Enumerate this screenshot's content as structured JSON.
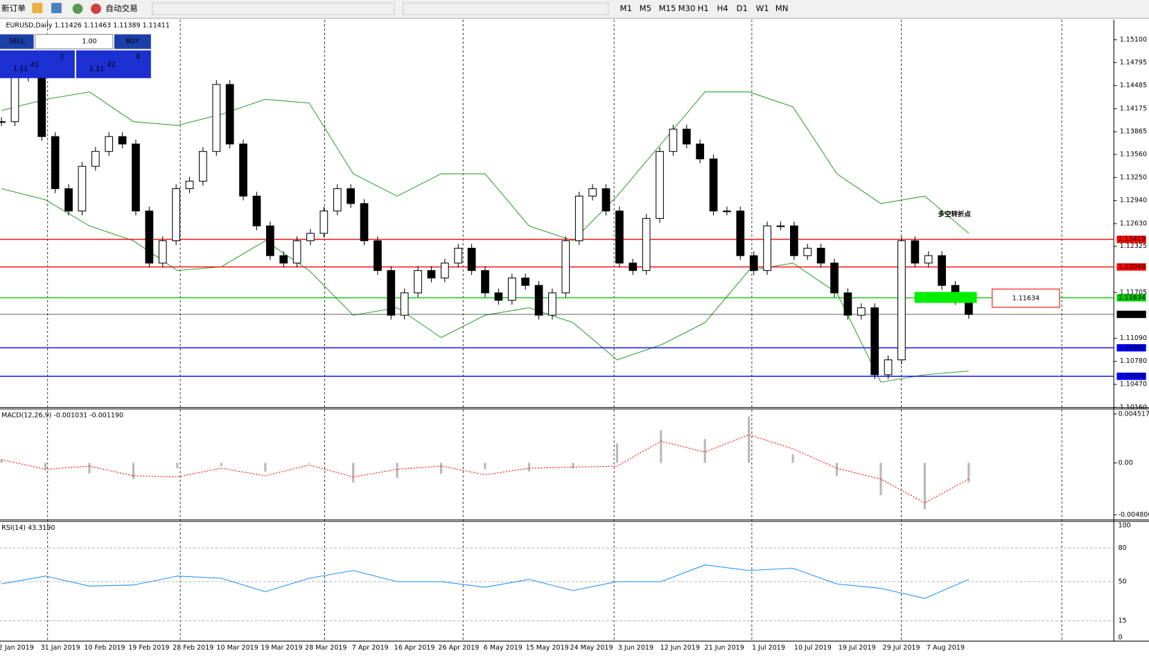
{
  "toolbar": {
    "new_order": "新订单",
    "auto_trade": "自动交易",
    "timeframes": [
      "M1",
      "M5",
      "M15",
      "M30",
      "H1",
      "H4",
      "D1",
      "W1",
      "MN"
    ]
  },
  "trade_panel": {
    "sell": "SELL",
    "buy": "BUY",
    "lots": "1.00",
    "bid_prefix": "1.11",
    "bid_big": "41",
    "bid_sup": "1",
    "ask_prefix": "1.11",
    "ask_big": "42",
    "ask_sup": "8"
  },
  "chart_data": {
    "type": "candlestick",
    "title": "EURUSD,Daily  1.11426 1.11463 1.11389 1.11411",
    "categories": [
      "2 Jan 2019",
      "31 Jan 2019",
      "10 Feb 2019",
      "19 Feb 2019",
      "28 Feb 2019",
      "10 Mar 2019",
      "19 Mar 2019",
      "28 Mar 2019",
      "7 Apr 2019",
      "16 Apr 2019",
      "26 Apr 2019",
      "6 May 2019",
      "15 May 2019",
      "24 May 2019",
      "3 Jun 2019",
      "12 Jun 2019",
      "21 Jun 2019",
      "1 Jul 2019",
      "10 Jul 2019",
      "19 Jul 2019",
      "29 Jul 2019",
      "7 Aug 2019"
    ],
    "closes": [
      1.14,
      1.148,
      1.146,
      1.138,
      1.131,
      1.128,
      1.134,
      1.136,
      1.138,
      1.137,
      1.128,
      1.121,
      1.124,
      1.131,
      1.132,
      1.136,
      1.145,
      1.137,
      1.13,
      1.126,
      1.122,
      1.121,
      1.124,
      1.125,
      1.128,
      1.131,
      1.129,
      1.124,
      1.12,
      1.114,
      1.117,
      1.12,
      1.119,
      1.121,
      1.123,
      1.12,
      1.117,
      1.116,
      1.119,
      1.118,
      1.114,
      1.117,
      1.124,
      1.13,
      1.131,
      1.128,
      1.121,
      1.12,
      1.127,
      1.136,
      1.139,
      1.137,
      1.135,
      1.128,
      1.128,
      1.122,
      1.12,
      1.126,
      1.126,
      1.122,
      1.123,
      1.121,
      1.117,
      1.114,
      1.115,
      1.106,
      1.108,
      1.124,
      1.121,
      1.122,
      1.118,
      1.116,
      1.1141
    ],
    "bb_upper": [
      1.1415,
      1.143,
      1.144,
      1.14,
      1.1395,
      1.141,
      1.143,
      1.1425,
      1.133,
      1.13,
      1.133,
      1.133,
      1.126,
      1.124,
      1.13,
      1.137,
      1.144,
      1.144,
      1.142,
      1.133,
      1.129,
      1.13,
      1.125
    ],
    "bb_lower": [
      1.131,
      1.1295,
      1.126,
      1.124,
      1.12,
      1.1205,
      1.124,
      1.12,
      1.114,
      1.115,
      1.111,
      1.114,
      1.115,
      1.113,
      1.108,
      1.11,
      1.113,
      1.12,
      1.121,
      1.117,
      1.105,
      1.106,
      1.1065
    ],
    "band_color": "#2e9e2e",
    "ylim": [
      1.1016,
      1.1537
    ],
    "yticks": [
      {
        "value": 1.151,
        "label": "1.15100"
      },
      1.14795,
      1.14485,
      1.14175,
      1.13865,
      {
        "value": 1.1356,
        "label": "1.13560"
      },
      {
        "value": 1.1325,
        "label": "1.13250"
      },
      {
        "value": 1.1294,
        "label": "1.12940"
      },
      {
        "value": 1.1263,
        "label": "1.12630"
      },
      1.12325,
      1.11705,
      {
        "value": 1.1109,
        "label": "1.11090"
      },
      {
        "value": 1.1078,
        "label": "1.10780"
      },
      {
        "value": 1.1047,
        "label": "1.10470"
      },
      {
        "value": 1.1016,
        "label": "1.10160"
      }
    ],
    "levels": [
      {
        "value": 1.12419,
        "color": "#ff0000"
      },
      {
        "value": 1.12048,
        "color": "#ff0000"
      },
      {
        "value": 1.11634,
        "color": "#00cc00"
      },
      {
        "value": 1.11411,
        "color": "#000000"
      },
      {
        "value": 1.10962,
        "color": "#0000ff"
      },
      {
        "value": 1.10579,
        "color": "#0000ff"
      }
    ],
    "annotation": "多空转折点",
    "callout": 1.11634,
    "macd": {
      "label": "MACD(12,26,9) -0.001031 -0.001190",
      "ylim": [
        -0.00528,
        0.00485
      ],
      "yticks": [
        0.004517,
        {
          "value": 0,
          "label": "0.00"
        },
        -0.004806
      ],
      "histogram": [
        0.0003,
        -0.0006,
        -0.001,
        -0.0015,
        -0.0005,
        -0.0003,
        -0.0008,
        0.0,
        -0.0018,
        -0.0014,
        -0.001,
        -0.0006,
        -0.0008,
        -0.0005,
        0.0018,
        0.003,
        0.0022,
        0.0043,
        0.0008,
        -0.0012,
        -0.003,
        -0.0043,
        -0.0018
      ],
      "signal": [
        0.0003,
        -0.0006,
        -0.0003,
        -0.0012,
        -0.0013,
        -0.0005,
        -0.0012,
        -0.0002,
        -0.0013,
        -0.0006,
        -0.0003,
        -0.0011,
        -0.0005,
        -0.0004,
        -0.0003,
        0.002,
        0.001,
        0.0026,
        0.0013,
        -0.0005,
        -0.0015,
        -0.0037,
        -0.0015
      ]
    },
    "rsi": {
      "label": "RSI(14) 43.3190",
      "ylim": [
        0,
        100
      ],
      "yticks": [
        100,
        80,
        50,
        15,
        0
      ],
      "values": [
        48,
        55,
        46,
        47,
        55,
        53,
        41,
        53,
        60,
        50,
        50,
        45,
        52,
        42,
        50,
        50,
        65,
        60,
        62,
        48,
        44,
        35,
        52
      ]
    }
  }
}
